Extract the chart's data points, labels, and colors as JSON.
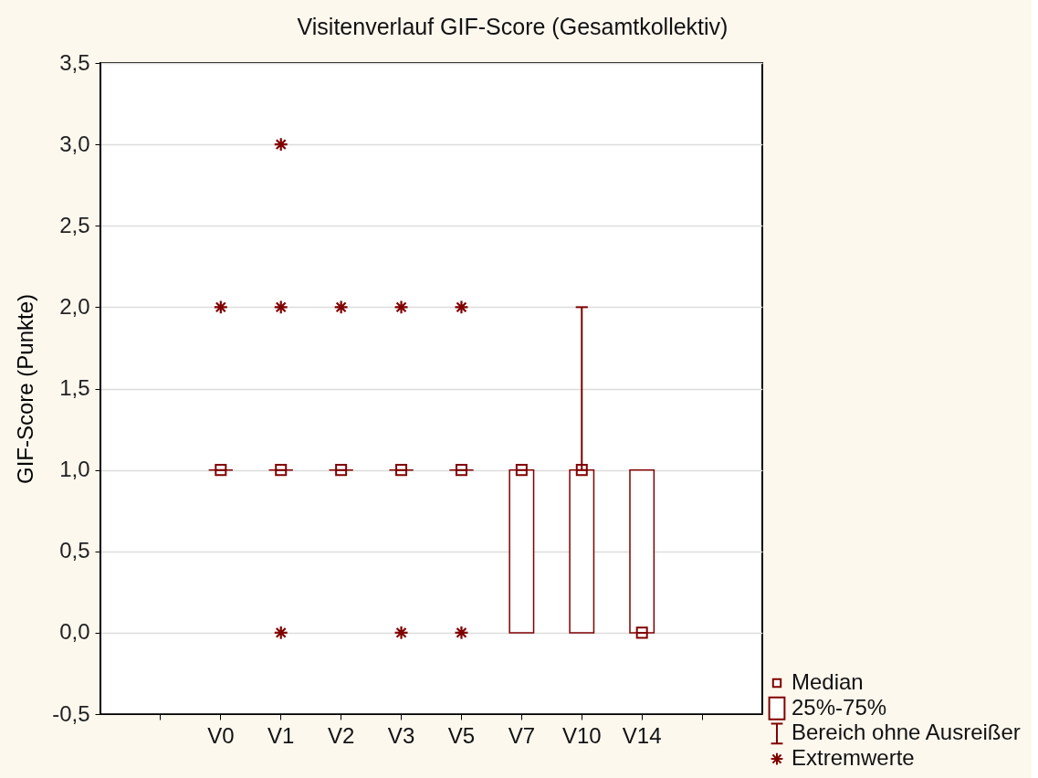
{
  "chart_data": {
    "type": "box",
    "title": "Visitenverlauf GIF-Score (Gesamtkollektiv)",
    "ylabel": "GIF-Score (Punkte)",
    "categories": [
      "V0",
      "V1",
      "V2",
      "V3",
      "V5",
      "V7",
      "V10",
      "V14"
    ],
    "series": [
      {
        "color": "#800000",
        "boxes": [
          {
            "low": 1,
            "q1": 1,
            "median": 1,
            "q3": 1,
            "high": 1,
            "outliers": [
              2
            ]
          },
          {
            "low": 1,
            "q1": 1,
            "median": 1,
            "q3": 1,
            "high": 1,
            "outliers": [
              0,
              2,
              3
            ]
          },
          {
            "low": 1,
            "q1": 1,
            "median": 1,
            "q3": 1,
            "high": 1,
            "outliers": [
              2
            ]
          },
          {
            "low": 1,
            "q1": 1,
            "median": 1,
            "q3": 1,
            "high": 1,
            "outliers": [
              0,
              2
            ]
          },
          {
            "low": 1,
            "q1": 1,
            "median": 1,
            "q3": 1,
            "high": 1,
            "outliers": [
              0,
              2
            ]
          },
          {
            "low": 0,
            "q1": 0,
            "median": 1,
            "q3": 1,
            "high": 1
          },
          {
            "low": 0,
            "q1": 0,
            "median": 1,
            "q3": 1,
            "high": 2
          },
          {
            "low": 0,
            "q1": 0,
            "median": 0,
            "q3": 1,
            "high": 1
          }
        ]
      }
    ],
    "ylim": [
      -0.5,
      3.5
    ],
    "yticks": [
      {
        "value": -0.5,
        "label": "-0,5"
      },
      {
        "value": 0,
        "label": "0,0"
      },
      {
        "value": 0.5,
        "label": "0,5"
      },
      {
        "value": 1,
        "label": "1,0"
      },
      {
        "value": 1.5,
        "label": "1,5"
      },
      {
        "value": 2,
        "label": "2,0"
      },
      {
        "value": 2.5,
        "label": "2,5"
      },
      {
        "value": 3,
        "label": "3,0"
      },
      {
        "value": 3.5,
        "label": "3,5"
      }
    ],
    "grid": "y",
    "annotations": [
      "Median",
      "25%-75%",
      "Bereich ohne Ausreißer",
      "Extremwerte"
    ]
  }
}
